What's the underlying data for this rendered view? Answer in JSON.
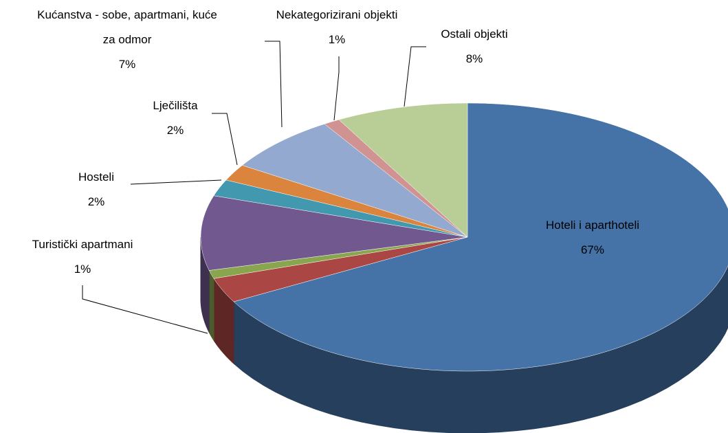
{
  "chart_data": {
    "type": "pie3d",
    "categories": [
      "Hoteli i aparthoteli",
      null,
      "Turistički apartmani",
      null,
      "Hosteli",
      "Lječilišta",
      "Kućanstva - sobe, apartmani, kuće za odmor",
      "Nekategorizirani objekti",
      "Ostali objekti"
    ],
    "values": [
      67,
      3,
      1,
      9,
      2,
      2,
      7,
      1,
      8
    ],
    "value_labels": [
      "67%",
      null,
      "1%",
      null,
      "2%",
      "2%",
      "7%",
      "1%",
      "8%"
    ],
    "colors": [
      "#4572a7",
      "#aa4643",
      "#89a54e",
      "#71588f",
      "#4198af",
      "#db843d",
      "#93a9cf",
      "#d19392",
      "#b9cd96"
    ]
  }
}
